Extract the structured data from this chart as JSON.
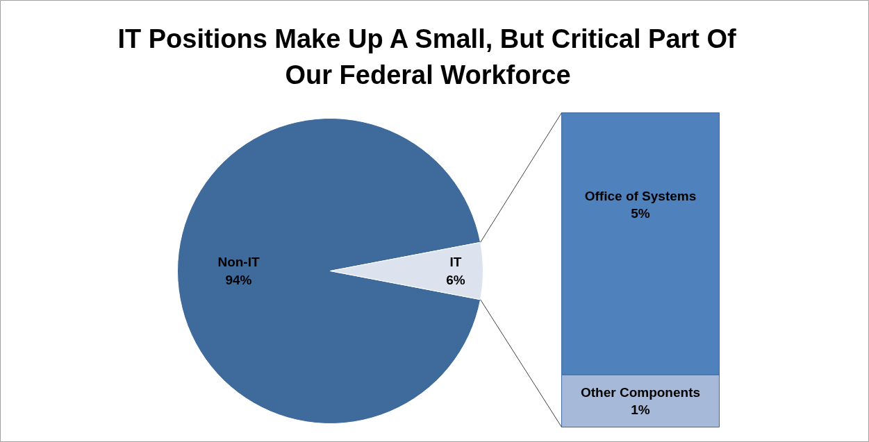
{
  "chart_data": [
    {
      "type": "pie",
      "title": "IT Positions Make Up A Small, But Critical Part Of Our Federal Workforce",
      "categories": [
        "Non-IT",
        "IT"
      ],
      "values": [
        94,
        6
      ],
      "colors": [
        "#3f6a9c",
        "#dce3ef"
      ],
      "value_labels": [
        "94%",
        "6%"
      ]
    },
    {
      "type": "bar",
      "stacked": true,
      "categories": [
        null
      ],
      "series": [
        {
          "name": "Other Components",
          "color": "#a7b9d8",
          "values": [
            1
          ],
          "value_labels": [
            "1%"
          ]
        },
        {
          "name": "Office of Systems",
          "color": "#4f81bd",
          "values": [
            5
          ],
          "value_labels": [
            "5%"
          ]
        }
      ]
    }
  ]
}
